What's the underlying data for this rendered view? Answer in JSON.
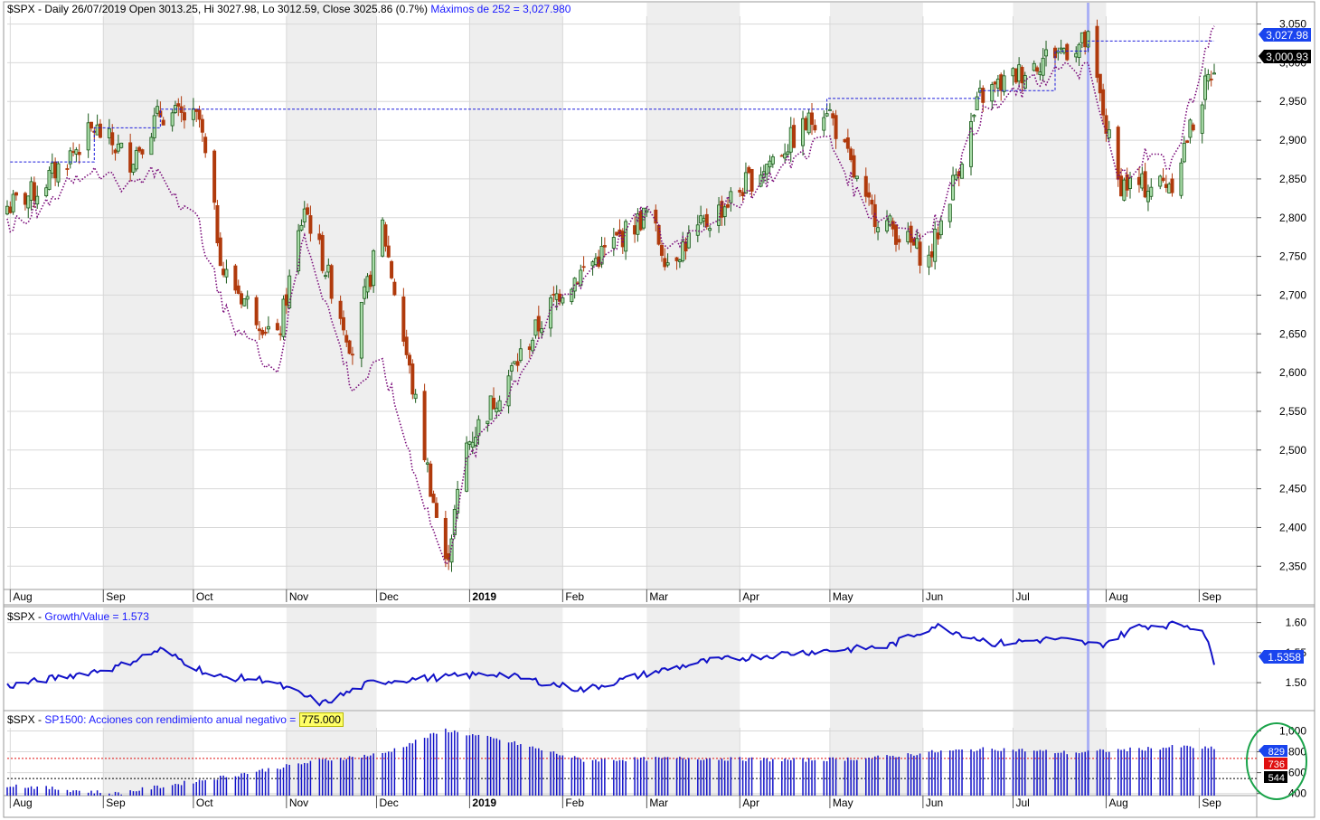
{
  "colors": {
    "up": "#2e8b2e",
    "down": "#b03a0c",
    "max252": "#1c1cdc",
    "dotted_series": "#7a0c7a",
    "growth_value": "#1212c8",
    "bars": "#1212c8",
    "cursor": "#aab0f5",
    "shade": "#eeeeee",
    "grid": "#d8d8d8",
    "label_blue": "#1a44ee",
    "label_red": "#e01010",
    "label_black": "#000000",
    "circle": "#1aa34a"
  },
  "panel1": {
    "header_prefix": "$SPX - Daily 26/07/2019 Open 3013.25, Hi 3027.98, Lo 3012.59, Close 3025.86 (0.7%)",
    "header_indicator": "Máximos de 252 = 3,027.980",
    "price_labels": {
      "max252": "3,027.98",
      "last": "3,000.93"
    }
  },
  "panel2": {
    "header_prefix": "$SPX - ",
    "header_indicator": "Growth/Value = 1.573",
    "last_label": "1.5358"
  },
  "panel3": {
    "header_prefix": "$SPX - ",
    "header_indicator": "SP1500: Acciones con rendimiento anual negativo =",
    "header_value": "775.000",
    "value_labels": {
      "blue": "829",
      "red": "736",
      "black": "544"
    }
  },
  "chart_data": [
    {
      "type": "candlestick",
      "name": "$SPX Daily",
      "y_ticks": [
        2350,
        2400,
        2450,
        2500,
        2550,
        2600,
        2650,
        2700,
        2750,
        2800,
        2850,
        2900,
        2950,
        3000,
        3050
      ],
      "y_tick_labels": [
        "2,350",
        "2,400",
        "2,450",
        "2,500",
        "2,550",
        "2,600",
        "2,650",
        "2,700",
        "2,750",
        "2,800",
        "2,850",
        "2,900",
        "2,950",
        "3,000",
        "3,050"
      ],
      "ylim": [
        2320,
        3060
      ],
      "x_month_labels": [
        "Aug",
        "Sep",
        "Oct",
        "Nov",
        "Dec",
        "2019",
        "Feb",
        "Mar",
        "Apr",
        "May",
        "Jun",
        "Jul",
        "Aug",
        "Sep"
      ],
      "close_anchors": {
        "x": [
          "2018-08-01",
          "2018-08-10",
          "2018-08-29",
          "2018-09-10",
          "2018-09-20",
          "2018-10-03",
          "2018-10-11",
          "2018-10-29",
          "2018-11-07",
          "2018-11-23",
          "2018-12-03",
          "2018-12-24",
          "2018-12-31",
          "2019-01-31",
          "2019-03-01",
          "2019-03-08",
          "2019-04-30",
          "2019-05-13",
          "2019-06-03",
          "2019-06-20",
          "2019-07-15",
          "2019-07-26",
          "2019-08-05",
          "2019-08-14",
          "2019-08-23",
          "2019-09-06"
        ],
        "y": [
          2815,
          2835,
          2915,
          2875,
          2935,
          2925,
          2730,
          2640,
          2815,
          2630,
          2790,
          2350,
          2506,
          2705,
          2805,
          2745,
          2945,
          2815,
          2745,
          2955,
          3015,
          3026,
          2845,
          2840,
          2848,
          3000
        ]
      },
      "series_252_day_high": {
        "x": [
          "2018-08-01",
          "2018-08-29",
          "2018-09-20",
          "2019-04-30",
          "2019-06-20",
          "2019-07-15",
          "2019-07-26",
          "2019-09-06"
        ],
        "y": [
          2872,
          2916,
          2940,
          2954,
          2964,
          3015,
          3028,
          3028
        ]
      },
      "dotted_series": {
        "x": [
          "2018-08-01",
          "2018-08-29",
          "2018-09-10",
          "2018-09-20",
          "2018-10-03",
          "2018-10-11",
          "2018-10-29",
          "2018-11-07",
          "2018-11-23",
          "2018-12-03",
          "2018-12-24",
          "2018-12-31",
          "2019-01-31",
          "2019-03-01",
          "2019-03-08",
          "2019-04-30",
          "2019-05-13",
          "2019-06-03",
          "2019-06-20",
          "2019-07-15",
          "2019-07-26",
          "2019-08-05",
          "2019-08-14",
          "2019-08-23",
          "2019-09-06"
        ],
        "y": [
          2790,
          2865,
          2840,
          2860,
          2790,
          2680,
          2600,
          2780,
          2580,
          2610,
          2345,
          2480,
          2690,
          2810,
          2760,
          2905,
          2810,
          2775,
          2930,
          2990,
          2990,
          2850,
          2880,
          2870,
          3050
        ]
      }
    },
    {
      "type": "line",
      "name": "Growth/Value",
      "y_ticks": [
        1.5,
        1.55,
        1.6
      ],
      "y_tick_labels": [
        "1.50",
        "1.55",
        "1.60"
      ],
      "ylim": [
        1.455,
        1.625
      ],
      "x": [
        "2018-08-01",
        "2018-09-05",
        "2018-09-20",
        "2018-10-08",
        "2018-10-25",
        "2018-11-13",
        "2018-11-29",
        "2018-12-10",
        "2019-01-10",
        "2019-02-08",
        "2019-03-01",
        "2019-03-20",
        "2019-04-20",
        "2019-05-20",
        "2019-06-05",
        "2019-06-25",
        "2019-07-15",
        "2019-07-30",
        "2019-08-12",
        "2019-08-26",
        "2019-09-02",
        "2019-09-06"
      ],
      "y": [
        1.495,
        1.525,
        1.555,
        1.51,
        1.505,
        1.465,
        1.5,
        1.505,
        1.515,
        1.488,
        1.515,
        1.535,
        1.55,
        1.56,
        1.595,
        1.565,
        1.573,
        1.562,
        1.594,
        1.597,
        1.59,
        1.535
      ]
    },
    {
      "type": "bar",
      "name": "SP1500: Acciones con rendimiento anual negativo",
      "y_ticks": [
        400,
        600,
        800,
        1000
      ],
      "y_tick_labels": [
        "400",
        "600",
        "800",
        "1,000"
      ],
      "ylim": [
        380,
        1030
      ],
      "reference_lines": [
        736,
        544
      ],
      "x": [
        "2018-08-01",
        "2018-09-05",
        "2018-10-11",
        "2018-11-13",
        "2018-12-03",
        "2018-12-24",
        "2019-01-15",
        "2019-02-08",
        "2019-03-15",
        "2019-04-20",
        "2019-05-15",
        "2019-06-05",
        "2019-06-25",
        "2019-07-20",
        "2019-08-14",
        "2019-08-26",
        "2019-09-06"
      ],
      "y": [
        480,
        400,
        560,
        720,
        780,
        1010,
        890,
        720,
        740,
        720,
        740,
        800,
        830,
        790,
        830,
        850,
        829
      ]
    }
  ]
}
